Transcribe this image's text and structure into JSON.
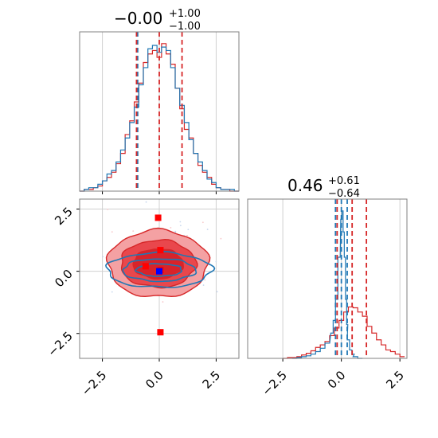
{
  "colors": {
    "red": "#d62728",
    "blue": "#1f77b4",
    "grid": "#d0d0d0",
    "frame": "#808080",
    "fill_inner": "#d8232a",
    "fill_mid": "#e9474c",
    "fill_outer": "#f4a1a3",
    "truth_blue": "#0000ff",
    "truth_red": "#ff0000"
  },
  "chart_data": [
    {
      "type": "line",
      "panel": "histogram",
      "param_index": 0,
      "title": "$-0.00^{+1.00}_{-1.00}$",
      "title_main": "−0.00",
      "title_sup": "+1.00",
      "title_sub": "−1.00",
      "xlim": [
        -3.5,
        3.5
      ],
      "xticks": [
        -2.5,
        0.0,
        2.5
      ],
      "grid": true,
      "quantile_lines": {
        "red": [
          -1.0,
          0.0,
          1.0
        ],
        "blue": [
          -0.95
        ]
      },
      "series": [
        {
          "color": "red",
          "x": [
            -3.4,
            -3.2,
            -3.0,
            -2.8,
            -2.6,
            -2.4,
            -2.2,
            -2.0,
            -1.8,
            -1.6,
            -1.4,
            -1.2,
            -1.0,
            -0.8,
            -0.6,
            -0.4,
            -0.2,
            0.0,
            0.2,
            0.4,
            0.6,
            0.8,
            1.0,
            1.2,
            1.4,
            1.6,
            1.8,
            2.0,
            2.2,
            2.4,
            2.6,
            2.8,
            3.0,
            3.2,
            3.4
          ],
          "values": [
            0,
            1,
            1,
            2,
            3,
            6,
            8,
            11,
            16,
            22,
            33,
            41,
            52,
            63,
            75,
            80,
            82,
            78,
            86,
            80,
            74,
            60,
            48,
            36,
            31,
            22,
            15,
            11,
            8,
            4,
            2,
            1,
            1,
            0,
            0
          ]
        },
        {
          "color": "blue",
          "x": [
            -3.4,
            -3.2,
            -3.0,
            -2.8,
            -2.6,
            -2.4,
            -2.2,
            -2.0,
            -1.8,
            -1.6,
            -1.4,
            -1.2,
            -1.0,
            -0.8,
            -0.6,
            -0.4,
            -0.2,
            0.0,
            0.2,
            0.4,
            0.6,
            0.8,
            1.0,
            1.2,
            1.4,
            1.6,
            1.8,
            2.0,
            2.2,
            2.4,
            2.6,
            2.8,
            3.0,
            3.2,
            3.4
          ],
          "values": [
            0,
            1,
            2,
            2,
            4,
            6,
            10,
            12,
            17,
            24,
            31,
            40,
            49,
            62,
            72,
            83,
            85,
            81,
            84,
            82,
            72,
            60,
            50,
            40,
            30,
            22,
            17,
            12,
            7,
            5,
            2,
            1,
            1,
            1,
            0
          ]
        }
      ]
    },
    {
      "type": "line",
      "panel": "histogram",
      "param_index": 1,
      "title": "$0.46^{+0.61}_{-0.64}$",
      "title_main": "0.46",
      "title_sup": "+0.61",
      "title_sub": "−0.64",
      "xlim": [
        -4.0,
        2.8
      ],
      "xticks": [
        -2.5,
        0.0,
        2.5
      ],
      "grid": true,
      "quantile_lines": {
        "red": [
          -0.18,
          0.46,
          1.07
        ],
        "blue": [
          -0.25,
          0.0,
          0.25
        ]
      },
      "series": [
        {
          "color": "red",
          "x": [
            -2.4,
            -2.2,
            -2.0,
            -1.8,
            -1.6,
            -1.4,
            -1.2,
            -1.0,
            -0.8,
            -0.6,
            -0.4,
            -0.2,
            0.0,
            0.2,
            0.4,
            0.6,
            0.8,
            1.0,
            1.2,
            1.4,
            1.6,
            1.8,
            2.0,
            2.2,
            2.4,
            2.6
          ],
          "values": [
            0,
            1,
            1,
            2,
            4,
            6,
            9,
            13,
            16,
            20,
            27,
            36,
            45,
            55,
            61,
            60,
            55,
            50,
            38,
            30,
            22,
            16,
            10,
            8,
            5,
            2
          ]
        },
        {
          "color": "blue",
          "x": [
            -2.0,
            -1.8,
            -1.6,
            -1.4,
            -1.2,
            -1.0,
            -0.8,
            -0.6,
            -0.4,
            -0.3,
            -0.2,
            -0.1,
            0.0,
            0.05,
            0.1,
            0.15,
            0.2,
            0.25,
            0.3,
            0.4,
            0.5,
            0.6,
            0.8
          ],
          "values": [
            0,
            1,
            2,
            3,
            5,
            8,
            12,
            18,
            30,
            45,
            70,
            120,
            165,
            175,
            150,
            120,
            70,
            40,
            22,
            10,
            5,
            2,
            0
          ]
        }
      ]
    },
    {
      "type": "scatter",
      "panel": "2d-contour",
      "xlim": [
        -3.5,
        3.5
      ],
      "ylim": [
        -3.5,
        2.9
      ],
      "xticks": [
        -2.5,
        0.0,
        2.5
      ],
      "yticks": [
        -2.5,
        0.0,
        2.5
      ],
      "grid": true,
      "truth_points": [
        {
          "color": "red",
          "x": -0.05,
          "y": 2.15
        },
        {
          "color": "red",
          "x": 0.05,
          "y": -2.45
        },
        {
          "color": "red",
          "x": -0.6,
          "y": 0.2
        },
        {
          "color": "red",
          "x": 0.05,
          "y": 0.85
        },
        {
          "color": "red",
          "x": 0.05,
          "y": 0.05
        },
        {
          "color": "blue",
          "x": 0.0,
          "y": 0.0
        }
      ],
      "contours": {
        "red_levels": [
          {
            "cx": -0.05,
            "cy": 0.3,
            "rx": 2.2,
            "ry": 1.35
          },
          {
            "cx": -0.05,
            "cy": 0.3,
            "rx": 1.65,
            "ry": 0.95
          },
          {
            "cx": -0.05,
            "cy": 0.3,
            "rx": 1.1,
            "ry": 0.6
          }
        ],
        "blue_levels": [
          {
            "cx": 0.0,
            "cy": 0.05,
            "rx": 2.3,
            "ry": 0.7
          },
          {
            "cx": 0.0,
            "cy": 0.05,
            "rx": 1.6,
            "ry": 0.45
          },
          {
            "cx": 0.0,
            "cy": 0.05,
            "rx": 1.0,
            "ry": 0.25
          }
        ]
      }
    }
  ]
}
